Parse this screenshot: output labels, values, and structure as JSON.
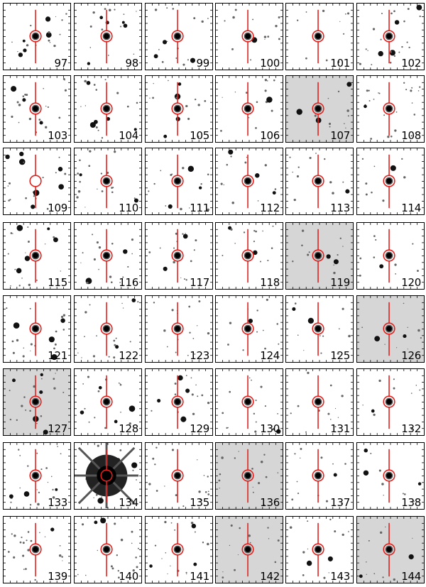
{
  "figure": {
    "panel_labels": [
      "97",
      "98",
      "99",
      "100",
      "101",
      "102",
      "103",
      "104",
      "105",
      "106",
      "107",
      "108",
      "109",
      "110",
      "111",
      "112",
      "113",
      "114",
      "115",
      "116",
      "117",
      "118",
      "119",
      "120",
      "121",
      "122",
      "123",
      "124",
      "125",
      "126",
      "127",
      "128",
      "129",
      "130",
      "131",
      "132",
      "133",
      "134",
      "135",
      "136",
      "137",
      "138",
      "139",
      "140",
      "141",
      "142",
      "143",
      "144"
    ],
    "shaded_panels": [
      "107",
      "119",
      "126",
      "127",
      "136",
      "142",
      "144"
    ],
    "saturated_panels": [
      "134"
    ],
    "empty_circle_panels": [
      "109"
    ],
    "colors": {
      "marker": "#e0201c",
      "star": "#000000",
      "background": "#ffffff",
      "shade": "#d6d6d6"
    },
    "marker_icon": "circle-crosshair-icon"
  }
}
